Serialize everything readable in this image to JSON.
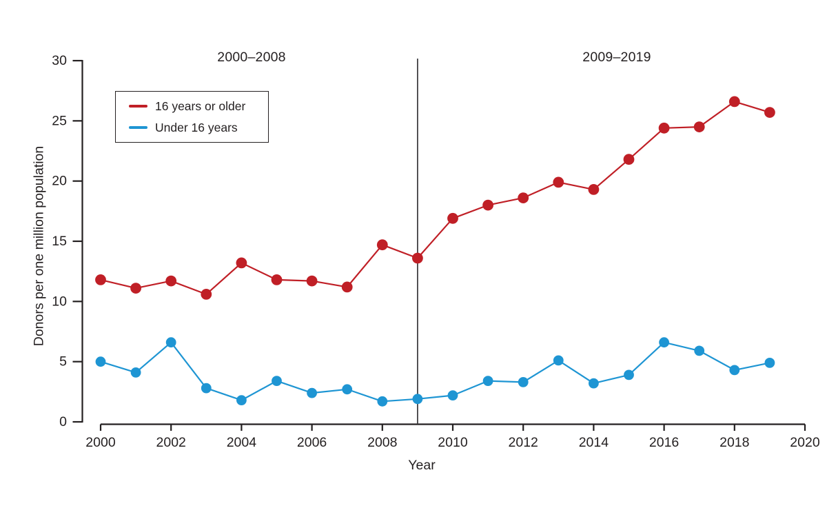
{
  "figure": {
    "period_left_label": "2000–2008",
    "period_right_label": "2009–2019",
    "x_axis_label": "Year",
    "y_axis_label": "Donors per one million population"
  },
  "colors": {
    "series_older": "#c01f26",
    "series_under": "#1e95d3",
    "axis": "#231f20",
    "divider": "#414042",
    "background": "#ffffff"
  },
  "legend": {
    "items": [
      {
        "label": "16 years or older",
        "color": "#c01f26"
      },
      {
        "label": "Under 16 years",
        "color": "#1e95d3"
      }
    ]
  },
  "chart_data": {
    "type": "line",
    "x": [
      2000,
      2001,
      2002,
      2003,
      2004,
      2005,
      2006,
      2007,
      2008,
      2009,
      2010,
      2011,
      2012,
      2013,
      2014,
      2015,
      2016,
      2017,
      2018,
      2019
    ],
    "series": [
      {
        "name": "16 years or older",
        "color": "#c01f26",
        "values": [
          11.8,
          11.1,
          11.7,
          10.6,
          13.2,
          11.8,
          11.7,
          11.2,
          14.7,
          13.6,
          16.9,
          18.0,
          18.6,
          19.9,
          19.3,
          21.8,
          24.4,
          24.5,
          26.6,
          25.7
        ]
      },
      {
        "name": "Under 16 years",
        "color": "#1e95d3",
        "values": [
          5.0,
          4.1,
          6.6,
          2.8,
          1.8,
          3.4,
          2.4,
          2.7,
          1.7,
          1.9,
          2.2,
          3.4,
          3.3,
          5.1,
          3.2,
          3.9,
          6.6,
          5.9,
          4.3,
          4.9
        ]
      }
    ],
    "title": "",
    "xlabel": "Year",
    "ylabel": "Donors per one million population",
    "xlim": [
      2000,
      2020
    ],
    "ylim": [
      0,
      30
    ],
    "xticks": [
      2000,
      2002,
      2004,
      2006,
      2008,
      2010,
      2012,
      2014,
      2016,
      2018,
      2020
    ],
    "yticks": [
      0,
      5,
      10,
      15,
      20,
      25,
      30
    ],
    "grid": false,
    "legend_position": "upper left",
    "divider_x": 2009,
    "annotations": [
      {
        "text": "2000–2008",
        "x_range": [
          2000,
          2008
        ],
        "position": "top-left-half"
      },
      {
        "text": "2009–2019",
        "x_range": [
          2009,
          2019
        ],
        "position": "top-right-half"
      }
    ]
  }
}
